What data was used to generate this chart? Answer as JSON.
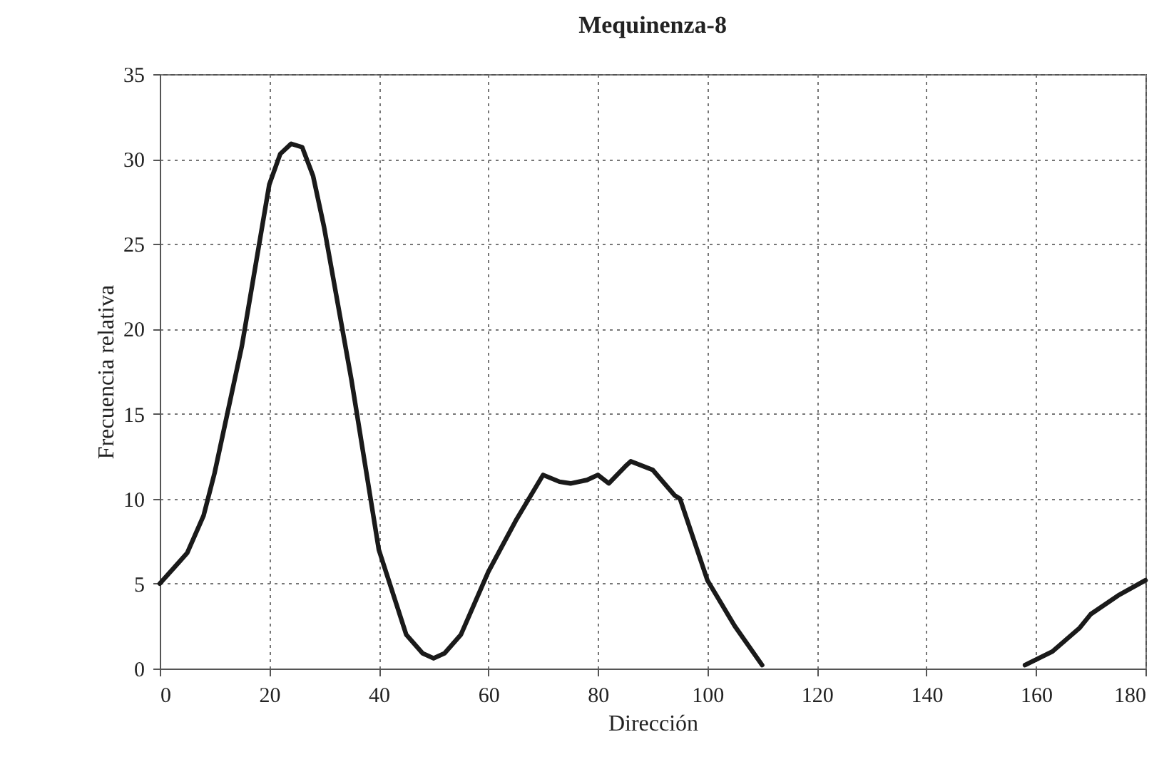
{
  "chart_data": {
    "type": "line",
    "title": "Mequinenza-8",
    "xlabel": "Dirección",
    "ylabel": "Frecuencia relativa",
    "x": [
      0,
      5,
      8,
      10,
      15,
      20,
      22,
      24,
      26,
      28,
      30,
      35,
      40,
      45,
      48,
      50,
      52,
      55,
      60,
      65,
      70,
      73,
      75,
      78,
      80,
      82,
      85,
      86,
      90,
      94,
      95,
      100,
      105,
      110,
      134,
      158,
      163,
      168,
      170,
      175,
      180
    ],
    "series": [
      {
        "color": "#1a1a1a",
        "values": [
          5,
          6.8,
          9,
          11.5,
          19,
          28.5,
          30.3,
          30.9,
          30.7,
          29,
          26,
          17,
          7,
          2,
          0.9,
          0.6,
          0.9,
          2,
          5.7,
          8.7,
          11.4,
          11.0,
          10.9,
          11.1,
          11.4,
          10.9,
          11.9,
          12.2,
          11.7,
          10.2,
          10,
          5.2,
          2.5,
          0.2,
          null,
          0.2,
          1,
          2.4,
          3.2,
          4.3,
          5.2
        ]
      }
    ],
    "xlim": [
      0,
      180
    ],
    "xticks": [
      0,
      20,
      40,
      60,
      80,
      100,
      120,
      140,
      160,
      180
    ],
    "ylim": [
      0,
      35
    ],
    "yticks": [
      0,
      5,
      10,
      15,
      20,
      25,
      30,
      35
    ],
    "grid": true,
    "marker": "none",
    "line_style": "solid"
  }
}
